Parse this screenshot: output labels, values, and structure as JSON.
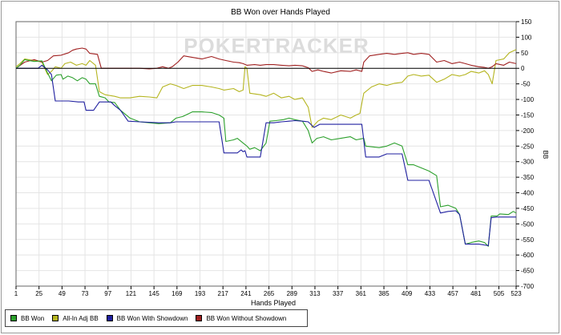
{
  "chart_data": {
    "type": "line",
    "title": "BB Won over Hands Played",
    "xlabel": "Hands Played",
    "ylabel": "",
    "y_unit_label": "BB",
    "watermark": "POKERTRACKER",
    "xlim": [
      1,
      523
    ],
    "ylim": [
      -700,
      150
    ],
    "x_ticks": [
      1,
      25,
      49,
      73,
      97,
      121,
      145,
      169,
      193,
      217,
      241,
      265,
      289,
      313,
      337,
      361,
      385,
      409,
      433,
      457,
      481,
      505,
      523
    ],
    "y_ticks": [
      150,
      100,
      50,
      0,
      -50,
      -100,
      -150,
      -200,
      -250,
      -300,
      -350,
      -400,
      -450,
      -500,
      -550,
      -600,
      -650,
      -700
    ],
    "grid": true,
    "legend_position": "bottom-left",
    "series": [
      {
        "name": "BB Won",
        "color": "#2ca02c",
        "points": [
          [
            1,
            0
          ],
          [
            5,
            10
          ],
          [
            10,
            28
          ],
          [
            20,
            22
          ],
          [
            28,
            24
          ],
          [
            34,
            -15
          ],
          [
            38,
            -40
          ],
          [
            43,
            -22
          ],
          [
            48,
            -20
          ],
          [
            50,
            -35
          ],
          [
            55,
            -25
          ],
          [
            60,
            -30
          ],
          [
            65,
            -40
          ],
          [
            70,
            -30
          ],
          [
            74,
            -35
          ],
          [
            78,
            -50
          ],
          [
            84,
            -50
          ],
          [
            88,
            -90
          ],
          [
            94,
            -95
          ],
          [
            98,
            -108
          ],
          [
            104,
            -110
          ],
          [
            110,
            -135
          ],
          [
            120,
            -160
          ],
          [
            130,
            -172
          ],
          [
            140,
            -175
          ],
          [
            150,
            -178
          ],
          [
            162,
            -175
          ],
          [
            168,
            -160
          ],
          [
            175,
            -155
          ],
          [
            185,
            -140
          ],
          [
            195,
            -140
          ],
          [
            205,
            -142
          ],
          [
            213,
            -150
          ],
          [
            218,
            -160
          ],
          [
            220,
            -235
          ],
          [
            228,
            -230
          ],
          [
            232,
            -225
          ],
          [
            238,
            -240
          ],
          [
            242,
            -250
          ],
          [
            245,
            -260
          ],
          [
            250,
            -255
          ],
          [
            256,
            -265
          ],
          [
            262,
            -240
          ],
          [
            266,
            -170
          ],
          [
            272,
            -168
          ],
          [
            280,
            -165
          ],
          [
            286,
            -160
          ],
          [
            292,
            -165
          ],
          [
            300,
            -170
          ],
          [
            306,
            -200
          ],
          [
            310,
            -240
          ],
          [
            315,
            -225
          ],
          [
            322,
            -220
          ],
          [
            330,
            -230
          ],
          [
            340,
            -225
          ],
          [
            350,
            -220
          ],
          [
            356,
            -230
          ],
          [
            364,
            -225
          ],
          [
            366,
            -250
          ],
          [
            380,
            -255
          ],
          [
            388,
            -250
          ],
          [
            396,
            -240
          ],
          [
            404,
            -250
          ],
          [
            410,
            -310
          ],
          [
            416,
            -310
          ],
          [
            424,
            -320
          ],
          [
            432,
            -330
          ],
          [
            440,
            -345
          ],
          [
            444,
            -445
          ],
          [
            452,
            -440
          ],
          [
            460,
            -450
          ],
          [
            464,
            -470
          ],
          [
            470,
            -565
          ],
          [
            476,
            -560
          ],
          [
            484,
            -555
          ],
          [
            490,
            -560
          ],
          [
            494,
            -572
          ],
          [
            497,
            -475
          ],
          [
            503,
            -475
          ],
          [
            506,
            -468
          ],
          [
            515,
            -470
          ],
          [
            520,
            -460
          ],
          [
            523,
            -465
          ]
        ]
      },
      {
        "name": "All-In Adj BB",
        "color": "#b5b520",
        "points": [
          [
            1,
            5
          ],
          [
            5,
            15
          ],
          [
            10,
            30
          ],
          [
            20,
            25
          ],
          [
            28,
            20
          ],
          [
            34,
            -20
          ],
          [
            38,
            -10
          ],
          [
            42,
            5
          ],
          [
            48,
            0
          ],
          [
            52,
            15
          ],
          [
            58,
            20
          ],
          [
            64,
            10
          ],
          [
            70,
            15
          ],
          [
            74,
            10
          ],
          [
            78,
            25
          ],
          [
            84,
            10
          ],
          [
            88,
            -75
          ],
          [
            94,
            -85
          ],
          [
            104,
            -90
          ],
          [
            110,
            -95
          ],
          [
            120,
            -95
          ],
          [
            130,
            -90
          ],
          [
            140,
            -92
          ],
          [
            148,
            -95
          ],
          [
            154,
            -60
          ],
          [
            162,
            -50
          ],
          [
            168,
            -55
          ],
          [
            176,
            -65
          ],
          [
            185,
            -55
          ],
          [
            195,
            -55
          ],
          [
            205,
            -60
          ],
          [
            213,
            -65
          ],
          [
            218,
            -70
          ],
          [
            228,
            -65
          ],
          [
            234,
            -75
          ],
          [
            238,
            -70
          ],
          [
            240,
            5
          ],
          [
            242,
            0
          ],
          [
            245,
            -80
          ],
          [
            256,
            -85
          ],
          [
            262,
            -90
          ],
          [
            270,
            -80
          ],
          [
            278,
            -95
          ],
          [
            286,
            -90
          ],
          [
            292,
            -100
          ],
          [
            300,
            -95
          ],
          [
            306,
            -125
          ],
          [
            310,
            -190
          ],
          [
            316,
            -170
          ],
          [
            322,
            -160
          ],
          [
            330,
            -165
          ],
          [
            340,
            -150
          ],
          [
            350,
            -160
          ],
          [
            356,
            -150
          ],
          [
            360,
            -145
          ],
          [
            364,
            -80
          ],
          [
            372,
            -60
          ],
          [
            380,
            -50
          ],
          [
            388,
            -55
          ],
          [
            396,
            -48
          ],
          [
            404,
            -45
          ],
          [
            410,
            -25
          ],
          [
            416,
            -20
          ],
          [
            424,
            -25
          ],
          [
            432,
            -22
          ],
          [
            440,
            -45
          ],
          [
            448,
            -35
          ],
          [
            456,
            -20
          ],
          [
            464,
            -25
          ],
          [
            470,
            -20
          ],
          [
            476,
            -10
          ],
          [
            484,
            -15
          ],
          [
            490,
            -8
          ],
          [
            494,
            -20
          ],
          [
            498,
            -50
          ],
          [
            502,
            25
          ],
          [
            510,
            30
          ],
          [
            516,
            50
          ],
          [
            523,
            60
          ]
        ]
      },
      {
        "name": "BB Won With Showdown",
        "color": "#2020a0",
        "points": [
          [
            1,
            0
          ],
          [
            12,
            0
          ],
          [
            24,
            0
          ],
          [
            28,
            10
          ],
          [
            34,
            -5
          ],
          [
            38,
            -20
          ],
          [
            42,
            -105
          ],
          [
            48,
            -105
          ],
          [
            56,
            -105
          ],
          [
            66,
            -108
          ],
          [
            72,
            -108
          ],
          [
            74,
            -135
          ],
          [
            82,
            -135
          ],
          [
            88,
            -108
          ],
          [
            94,
            -108
          ],
          [
            100,
            -108
          ],
          [
            104,
            -120
          ],
          [
            110,
            -135
          ],
          [
            118,
            -170
          ],
          [
            130,
            -172
          ],
          [
            150,
            -175
          ],
          [
            162,
            -175
          ],
          [
            168,
            -172
          ],
          [
            176,
            -172
          ],
          [
            185,
            -172
          ],
          [
            195,
            -172
          ],
          [
            205,
            -172
          ],
          [
            213,
            -172
          ],
          [
            218,
            -272
          ],
          [
            232,
            -272
          ],
          [
            236,
            -262
          ],
          [
            238,
            -268
          ],
          [
            240,
            -265
          ],
          [
            242,
            -285
          ],
          [
            252,
            -285
          ],
          [
            256,
            -285
          ],
          [
            262,
            -175
          ],
          [
            270,
            -175
          ],
          [
            278,
            -172
          ],
          [
            286,
            -170
          ],
          [
            292,
            -168
          ],
          [
            300,
            -170
          ],
          [
            306,
            -172
          ],
          [
            312,
            -190
          ],
          [
            318,
            -180
          ],
          [
            324,
            -180
          ],
          [
            340,
            -180
          ],
          [
            350,
            -180
          ],
          [
            358,
            -180
          ],
          [
            362,
            -180
          ],
          [
            366,
            -285
          ],
          [
            380,
            -285
          ],
          [
            388,
            -275
          ],
          [
            404,
            -275
          ],
          [
            410,
            -360
          ],
          [
            420,
            -360
          ],
          [
            432,
            -360
          ],
          [
            444,
            -465
          ],
          [
            452,
            -460
          ],
          [
            460,
            -458
          ],
          [
            464,
            -470
          ],
          [
            470,
            -565
          ],
          [
            484,
            -565
          ],
          [
            494,
            -570
          ],
          [
            497,
            -480
          ],
          [
            503,
            -478
          ],
          [
            510,
            -478
          ],
          [
            523,
            -478
          ]
        ]
      },
      {
        "name": "BB Won Without Showdown",
        "color": "#a02020",
        "points": [
          [
            1,
            0
          ],
          [
            10,
            20
          ],
          [
            20,
            28
          ],
          [
            28,
            20
          ],
          [
            34,
            25
          ],
          [
            40,
            40
          ],
          [
            48,
            42
          ],
          [
            56,
            50
          ],
          [
            60,
            58
          ],
          [
            64,
            62
          ],
          [
            70,
            65
          ],
          [
            74,
            62
          ],
          [
            78,
            48
          ],
          [
            86,
            45
          ],
          [
            90,
            0
          ],
          [
            98,
            0
          ],
          [
            110,
            0
          ],
          [
            120,
            0
          ],
          [
            130,
            0
          ],
          [
            140,
            -2
          ],
          [
            148,
            0
          ],
          [
            154,
            5
          ],
          [
            160,
            0
          ],
          [
            164,
            5
          ],
          [
            170,
            20
          ],
          [
            176,
            40
          ],
          [
            185,
            35
          ],
          [
            195,
            30
          ],
          [
            205,
            38
          ],
          [
            213,
            30
          ],
          [
            220,
            25
          ],
          [
            228,
            20
          ],
          [
            234,
            18
          ],
          [
            238,
            15
          ],
          [
            242,
            10
          ],
          [
            250,
            12
          ],
          [
            256,
            10
          ],
          [
            262,
            12
          ],
          [
            270,
            12
          ],
          [
            278,
            10
          ],
          [
            286,
            8
          ],
          [
            292,
            10
          ],
          [
            300,
            8
          ],
          [
            306,
            2
          ],
          [
            310,
            -10
          ],
          [
            316,
            -5
          ],
          [
            322,
            -10
          ],
          [
            330,
            -15
          ],
          [
            340,
            -8
          ],
          [
            350,
            -10
          ],
          [
            356,
            -5
          ],
          [
            362,
            -10
          ],
          [
            364,
            20
          ],
          [
            370,
            40
          ],
          [
            380,
            45
          ],
          [
            388,
            48
          ],
          [
            396,
            45
          ],
          [
            404,
            48
          ],
          [
            410,
            50
          ],
          [
            416,
            45
          ],
          [
            424,
            48
          ],
          [
            432,
            45
          ],
          [
            440,
            20
          ],
          [
            448,
            25
          ],
          [
            456,
            15
          ],
          [
            464,
            20
          ],
          [
            470,
            15
          ],
          [
            476,
            10
          ],
          [
            484,
            5
          ],
          [
            490,
            3
          ],
          [
            494,
            0
          ],
          [
            498,
            5
          ],
          [
            502,
            15
          ],
          [
            510,
            10
          ],
          [
            516,
            20
          ],
          [
            523,
            15
          ]
        ]
      }
    ]
  }
}
